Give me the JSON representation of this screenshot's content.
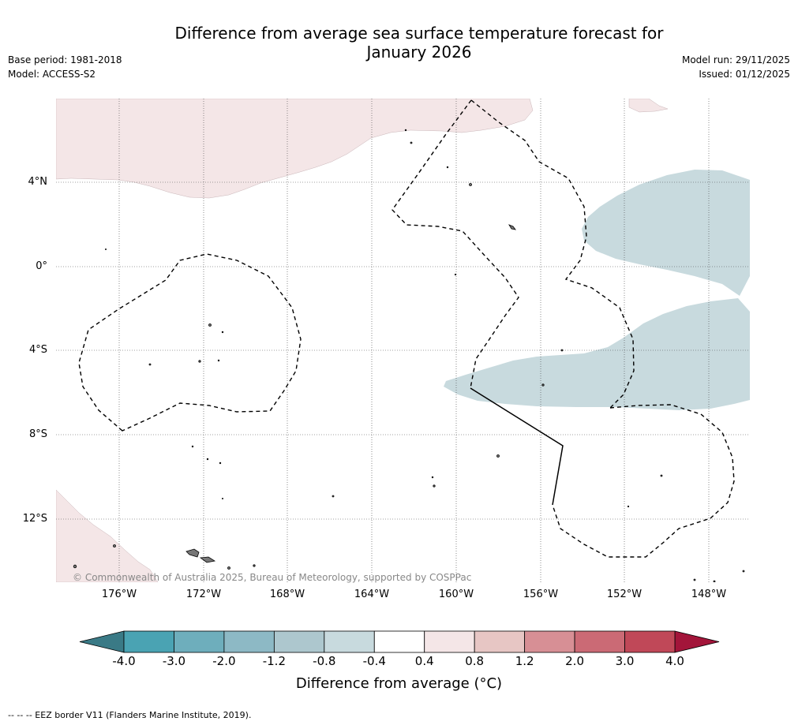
{
  "title_line1": "Difference from average sea surface temperature forecast for",
  "title_line2": "January 2026",
  "base_period": "Base period: 1981-2018",
  "model": "Model: ACCESS-S2",
  "model_run": "Model run: 29/11/2025",
  "issued": "Issued: 01/12/2025",
  "copyright": "© Commonwealth of Australia 2025, Bureau of Meteorology, supported by COSPPac",
  "lat_labels": [
    "4°N",
    "0°",
    "4°S",
    "8°S",
    "12°S"
  ],
  "lon_labels": [
    "176°W",
    "172°W",
    "168°W",
    "164°W",
    "160°W",
    "156°W",
    "152°W",
    "148°W"
  ],
  "colorbar": {
    "ticks": [
      "-4.0",
      "-3.0",
      "-2.0",
      "-1.2",
      "-0.8",
      "-0.4",
      "0.4",
      "0.8",
      "1.2",
      "2.0",
      "3.0",
      "4.0"
    ],
    "colors": [
      "#4aa3b3",
      "#6eaebc",
      "#8db9c5",
      "#adc7ce",
      "#c8dade",
      "#ffffff",
      "#f4e6e7",
      "#e7c6c4",
      "#d78f95",
      "#cb6a75",
      "#c04858"
    ],
    "low_extend_color": "#3a7a86",
    "high_extend_color": "#a3153a",
    "label": "Difference from average (°C)"
  },
  "footnote": "-- -- -- EEZ border V11 (Flanders Marine Institute, 2019).",
  "colors": {
    "warm_light": "#f4e6e7",
    "cool_light": "#c8dade",
    "land": "#888888"
  }
}
